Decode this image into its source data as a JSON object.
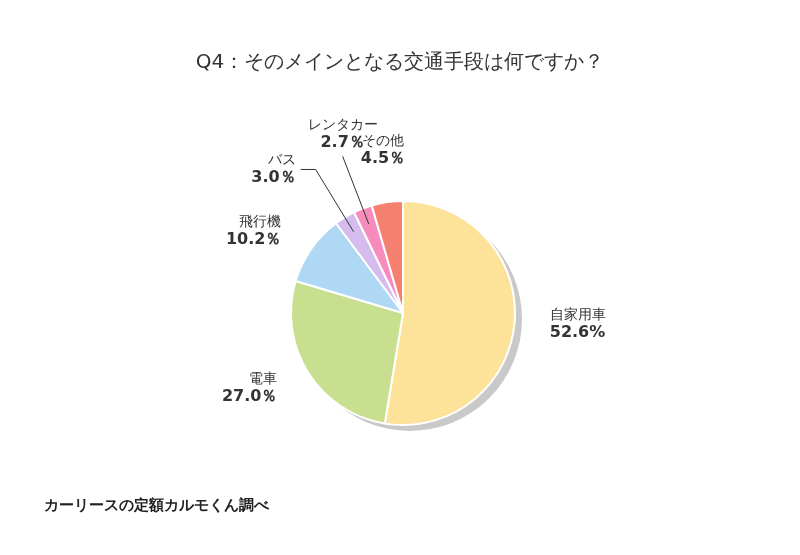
{
  "chart_data": {
    "type": "pie",
    "title": "Q4：そのメインとなる交通手段は何ですか？",
    "categories": [
      "自家用車",
      "電車",
      "飛行機",
      "バス",
      "レンタカー",
      "その他"
    ],
    "values": [
      52.6,
      27.0,
      10.2,
      3.0,
      2.7,
      4.5
    ],
    "value_labels": [
      "52.6%",
      "27.0％",
      "10.2％",
      "3.0％",
      "2.7％",
      "4.5％"
    ],
    "colors": [
      "#fde39a",
      "#c7df8f",
      "#aed8f3",
      "#d4bcef",
      "#f58cbc",
      "#f5806f"
    ],
    "data_labels": true,
    "source": "カーリースの定額カルモくん調べ"
  }
}
